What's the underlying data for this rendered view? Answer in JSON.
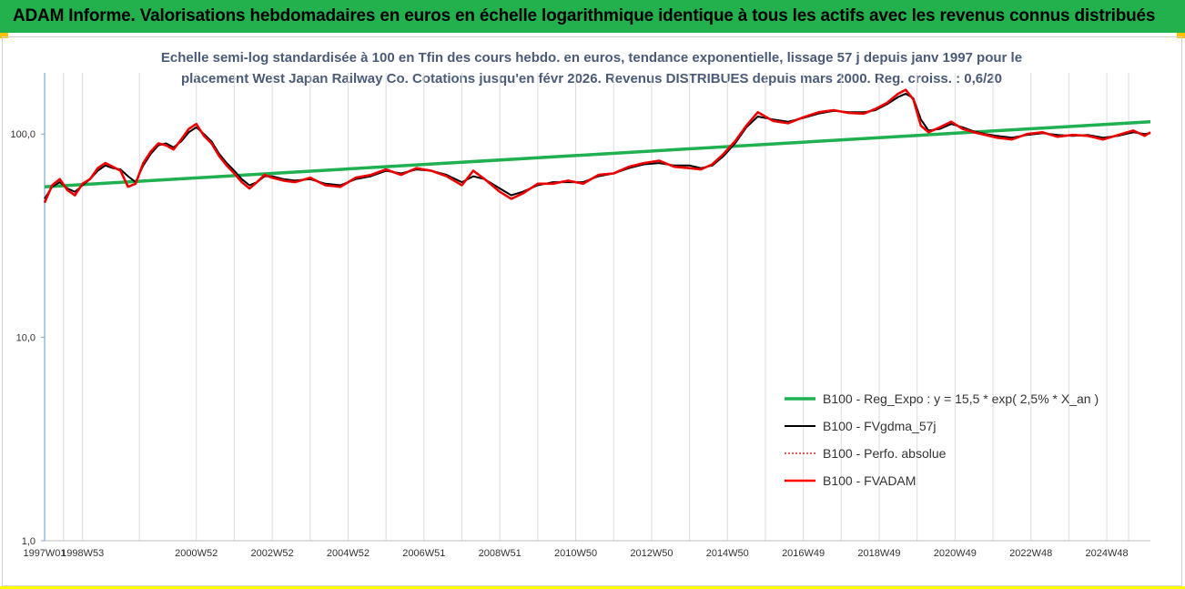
{
  "banner": {
    "title": "ADAM Informe. Valorisations hebdomadaires en euros en échelle logarithmique identique à tous les actifs avec les revenus connus distribués"
  },
  "chart_data": {
    "type": "line",
    "title": "Echelle semi-log standardisée à 100 en Tfin des cours hebdo. en euros, tendance exponentielle, lissage 57 j depuis janv 1997 pour le",
    "subtitle": "placement West Japan Railway Co. Cotations jusqu'en févr 2026. Revenus DISTRIBUES depuis mars 2000. Reg. croiss. : 0,6/20",
    "y_scale": "log",
    "ylim": [
      1,
      200
    ],
    "y_ticks": [
      {
        "value": 1,
        "label": "1,0"
      },
      {
        "value": 10,
        "label": "10,0"
      },
      {
        "value": 100,
        "label": "100,0"
      }
    ],
    "xlim": [
      1997.0,
      2026.15
    ],
    "x_ticks": [
      {
        "value": 1997.0,
        "label": "1997W01"
      },
      {
        "value": 1998.0,
        "label": "1998W53"
      },
      {
        "value": 2001.0,
        "label": "2000W52"
      },
      {
        "value": 2003.0,
        "label": "2002W52"
      },
      {
        "value": 2005.0,
        "label": "2004W52"
      },
      {
        "value": 2007.0,
        "label": "2006W51"
      },
      {
        "value": 2009.0,
        "label": "2008W51"
      },
      {
        "value": 2011.0,
        "label": "2010W50"
      },
      {
        "value": 2013.0,
        "label": "2012W50"
      },
      {
        "value": 2015.0,
        "label": "2014W50"
      },
      {
        "value": 2017.0,
        "label": "2016W49"
      },
      {
        "value": 2019.0,
        "label": "2018W49"
      },
      {
        "value": 2021.0,
        "label": "2020W49"
      },
      {
        "value": 2023.0,
        "label": "2022W48"
      },
      {
        "value": 2025.0,
        "label": "2024W48"
      }
    ],
    "legend_position": "right",
    "series": [
      {
        "name": "B100 - Reg_Expo : y = 15,5 * exp( 2,5% *  X_an )",
        "color": "#1fb050",
        "style": "trend",
        "x": [
          1997.0,
          2026.15
        ],
        "values": [
          55,
          115
        ]
      },
      {
        "name": "B100 - FVgdma_57j",
        "color": "#000000",
        "style": "smooth",
        "x": [
          1997.0,
          1997.2,
          1997.4,
          1997.6,
          1997.8,
          1998.0,
          1998.2,
          1998.4,
          1998.6,
          1998.8,
          1999.0,
          1999.2,
          1999.4,
          1999.6,
          1999.8,
          2000.0,
          2000.2,
          2000.4,
          2000.6,
          2000.8,
          2001.0,
          2001.2,
          2001.4,
          2001.6,
          2001.8,
          2002.0,
          2002.2,
          2002.4,
          2002.6,
          2002.8,
          2003.0,
          2003.3,
          2003.6,
          2004.0,
          2004.4,
          2004.8,
          2005.2,
          2005.6,
          2006.0,
          2006.4,
          2006.8,
          2007.2,
          2007.6,
          2008.0,
          2008.3,
          2008.6,
          2009.0,
          2009.3,
          2009.6,
          2010.0,
          2010.4,
          2010.8,
          2011.2,
          2011.6,
          2012.0,
          2012.4,
          2012.8,
          2013.2,
          2013.6,
          2014.0,
          2014.3,
          2014.6,
          2014.9,
          2015.2,
          2015.5,
          2015.8,
          2016.2,
          2016.6,
          2017.0,
          2017.4,
          2017.8,
          2018.2,
          2018.6,
          2018.9,
          2019.2,
          2019.5,
          2019.7,
          2019.9,
          2020.1,
          2020.3,
          2020.6,
          2020.9,
          2021.2,
          2021.5,
          2021.8,
          2022.1,
          2022.5,
          2022.9,
          2023.3,
          2023.7,
          2024.1,
          2024.5,
          2024.9,
          2025.3,
          2025.7,
          2026.0,
          2026.15
        ],
        "values": [
          48,
          55,
          58,
          54,
          52,
          56,
          60,
          66,
          70,
          68,
          67,
          62,
          58,
          70,
          80,
          88,
          90,
          86,
          92,
          102,
          108,
          100,
          92,
          80,
          72,
          66,
          60,
          56,
          58,
          62,
          62,
          60,
          59,
          60,
          57,
          56,
          60,
          62,
          66,
          64,
          67,
          66,
          63,
          58,
          62,
          60,
          54,
          50,
          52,
          56,
          58,
          58,
          58,
          62,
          64,
          68,
          71,
          72,
          70,
          70,
          68,
          70,
          78,
          90,
          108,
          122,
          118,
          115,
          120,
          126,
          130,
          128,
          128,
          131,
          140,
          152,
          158,
          150,
          118,
          104,
          106,
          112,
          108,
          103,
          100,
          98,
          96,
          99,
          101,
          99,
          98,
          99,
          96,
          98,
          102,
          100,
          101
        ]
      },
      {
        "name": "B100 - Perfo. absolue",
        "color": "#c00000",
        "style": "dotted",
        "x": [
          1997.0,
          1997.2,
          1997.4,
          1997.6,
          1997.8,
          1998.0,
          1998.2,
          1998.4,
          1998.6,
          1998.8,
          1999.0,
          1999.2,
          1999.4,
          1999.6,
          1999.8,
          2000.0,
          2000.2,
          2000.4,
          2000.6,
          2000.8,
          2001.0,
          2001.2,
          2001.4,
          2001.6,
          2001.8,
          2002.0,
          2002.2,
          2002.4,
          2002.6,
          2002.8,
          2003.0,
          2003.3,
          2003.6,
          2004.0,
          2004.4,
          2004.8,
          2005.2,
          2005.6,
          2006.0,
          2006.4,
          2006.8,
          2007.2,
          2007.6,
          2008.0,
          2008.3,
          2008.6,
          2009.0,
          2009.3,
          2009.6,
          2010.0,
          2010.4,
          2010.8,
          2011.2,
          2011.6,
          2012.0,
          2012.4,
          2012.8,
          2013.2,
          2013.6,
          2014.0,
          2014.3,
          2014.6,
          2014.9,
          2015.2,
          2015.5,
          2015.8,
          2016.2,
          2016.6,
          2017.0,
          2017.4,
          2017.8,
          2018.2,
          2018.6,
          2018.9,
          2019.2,
          2019.5,
          2019.7,
          2019.9,
          2020.1,
          2020.3,
          2020.6,
          2020.9,
          2021.2,
          2021.5,
          2021.8,
          2022.1,
          2022.5,
          2022.9,
          2023.3,
          2023.7,
          2024.1,
          2024.5,
          2024.9,
          2025.3,
          2025.7,
          2026.0,
          2026.15
        ],
        "values": [
          46,
          56,
          60,
          53,
          50,
          57,
          60,
          68,
          72,
          69,
          66,
          55,
          57,
          72,
          82,
          90,
          88,
          84,
          94,
          106,
          112,
          98,
          90,
          78,
          70,
          64,
          58,
          54,
          58,
          63,
          61,
          59,
          58,
          61,
          56,
          55,
          61,
          63,
          67,
          63,
          68,
          66,
          62,
          56,
          66,
          60,
          52,
          48,
          51,
          57,
          57,
          59,
          57,
          63,
          64,
          69,
          72,
          74,
          69,
          68,
          67,
          71,
          80,
          92,
          110,
          128,
          116,
          113,
          121,
          128,
          131,
          127,
          126,
          133,
          142,
          158,
          165,
          148,
          110,
          102,
          108,
          115,
          106,
          102,
          99,
          96,
          94,
          100,
          102,
          97,
          99,
          98,
          94,
          99,
          104,
          98,
          102
        ]
      },
      {
        "name": "B100 - FVADAM",
        "color": "#ff0000",
        "style": "thick",
        "x": [
          1997.0,
          1997.2,
          1997.4,
          1997.6,
          1997.8,
          1998.0,
          1998.2,
          1998.4,
          1998.6,
          1998.8,
          1999.0,
          1999.2,
          1999.4,
          1999.6,
          1999.8,
          2000.0,
          2000.2,
          2000.4,
          2000.6,
          2000.8,
          2001.0,
          2001.2,
          2001.4,
          2001.6,
          2001.8,
          2002.0,
          2002.2,
          2002.4,
          2002.6,
          2002.8,
          2003.0,
          2003.3,
          2003.6,
          2004.0,
          2004.4,
          2004.8,
          2005.2,
          2005.6,
          2006.0,
          2006.4,
          2006.8,
          2007.2,
          2007.6,
          2008.0,
          2008.3,
          2008.6,
          2009.0,
          2009.3,
          2009.6,
          2010.0,
          2010.4,
          2010.8,
          2011.2,
          2011.6,
          2012.0,
          2012.4,
          2012.8,
          2013.2,
          2013.6,
          2014.0,
          2014.3,
          2014.6,
          2014.9,
          2015.2,
          2015.5,
          2015.8,
          2016.2,
          2016.6,
          2017.0,
          2017.4,
          2017.8,
          2018.2,
          2018.6,
          2018.9,
          2019.2,
          2019.5,
          2019.7,
          2019.9,
          2020.1,
          2020.3,
          2020.6,
          2020.9,
          2021.2,
          2021.5,
          2021.8,
          2022.1,
          2022.5,
          2022.9,
          2023.3,
          2023.7,
          2024.1,
          2024.5,
          2024.9,
          2025.3,
          2025.7,
          2026.0,
          2026.15
        ],
        "values": [
          46,
          56,
          60,
          53,
          50,
          57,
          60,
          68,
          72,
          69,
          66,
          55,
          57,
          72,
          82,
          90,
          88,
          84,
          94,
          106,
          112,
          98,
          90,
          78,
          70,
          64,
          58,
          54,
          58,
          63,
          61,
          59,
          58,
          61,
          56,
          55,
          61,
          63,
          67,
          63,
          68,
          66,
          62,
          56,
          66,
          60,
          52,
          48,
          51,
          57,
          57,
          59,
          57,
          63,
          64,
          69,
          72,
          74,
          69,
          68,
          67,
          71,
          80,
          92,
          110,
          128,
          116,
          113,
          121,
          128,
          131,
          127,
          126,
          133,
          142,
          158,
          165,
          148,
          110,
          102,
          108,
          115,
          106,
          102,
          99,
          96,
          94,
          100,
          102,
          97,
          99,
          98,
          94,
          99,
          104,
          98,
          102
        ]
      }
    ]
  }
}
